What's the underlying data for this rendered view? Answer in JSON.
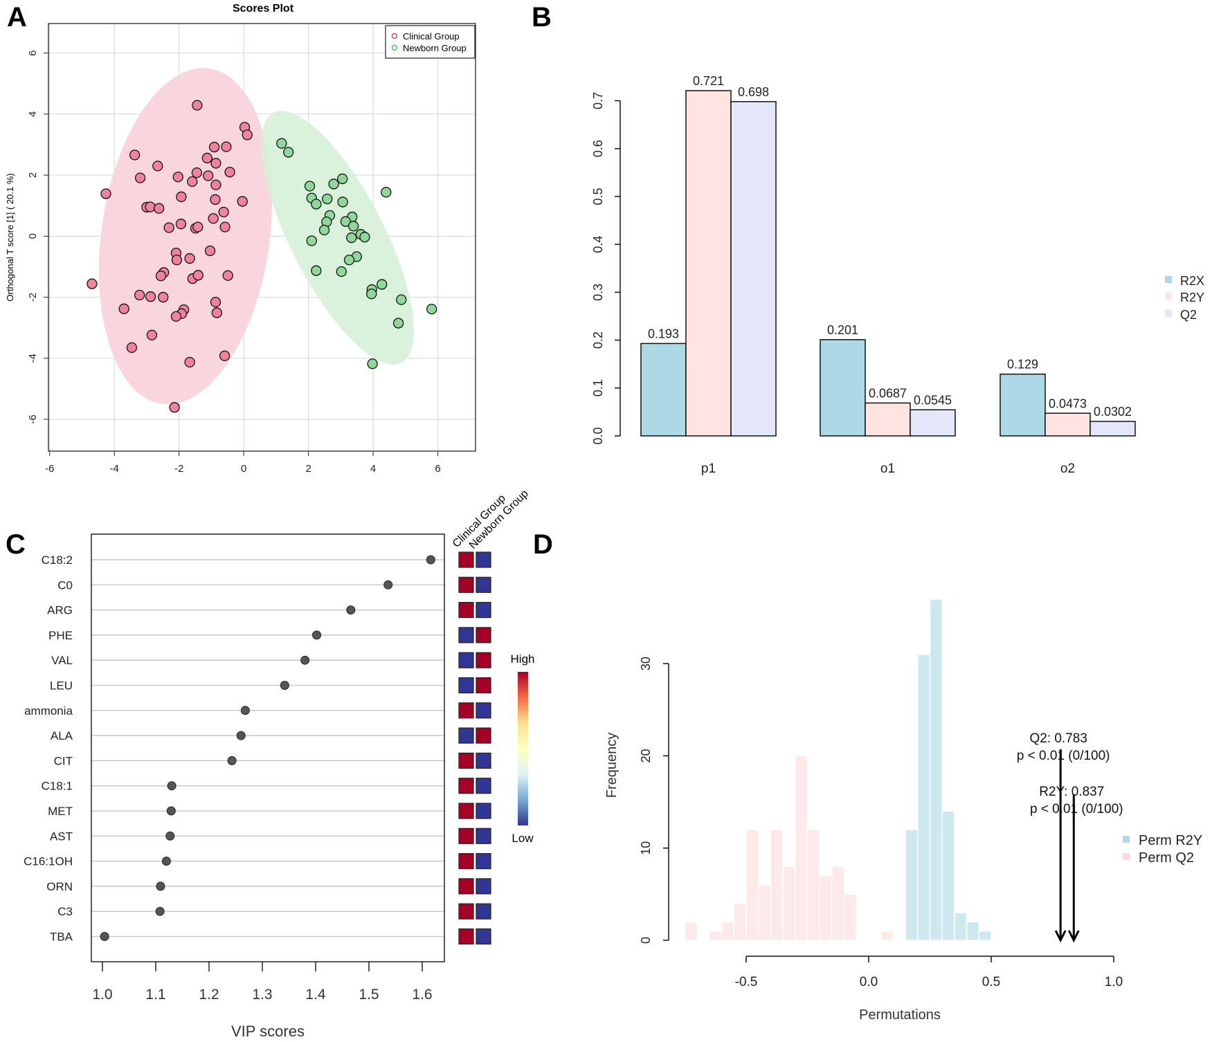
{
  "panels": {
    "a": "A",
    "b": "B",
    "c": "C",
    "d": "D"
  },
  "chart_data": [
    {
      "id": "A",
      "type": "scatter",
      "title": "Scores Plot",
      "xlabel": "",
      "ylabel": "Orthogonal T score [1] ( 20.1 %)",
      "xlim": [
        -6.3,
        7.1
      ],
      "ylim": [
        -7.0,
        6.8
      ],
      "xticks": [
        -6,
        -4,
        -2,
        0,
        2,
        4,
        6
      ],
      "yticks": [
        -6,
        -4,
        -2,
        0,
        2,
        4,
        6
      ],
      "grid": true,
      "legend_position": "top-right",
      "series": [
        {
          "name": "Clinical Group",
          "color": "#f0829e",
          "legend_color": "#d6204f",
          "ellipse_color": "#f8d0da",
          "ellipse": {
            "center": [
              -1.8,
              0.0
            ],
            "semi_major": 5.55,
            "semi_minor": 2.6,
            "tilt_deg": 8
          },
          "points": [
            [
              -1.44,
              4.29
            ],
            [
              0.03,
              3.57
            ],
            [
              0.11,
              3.32
            ],
            [
              -3.37,
              2.66
            ],
            [
              -0.91,
              2.92
            ],
            [
              -0.54,
              2.93
            ],
            [
              -1.13,
              2.56
            ],
            [
              -0.86,
              2.39
            ],
            [
              -2.66,
              2.3
            ],
            [
              -3.2,
              1.91
            ],
            [
              -2.03,
              1.94
            ],
            [
              -1.45,
              2.08
            ],
            [
              -0.43,
              2.1
            ],
            [
              -1.1,
              1.98
            ],
            [
              -1.59,
              1.79
            ],
            [
              -0.86,
              1.68
            ],
            [
              -4.26,
              1.39
            ],
            [
              -1.93,
              1.29
            ],
            [
              -0.88,
              1.2
            ],
            [
              -0.04,
              1.14
            ],
            [
              -3.0,
              0.95
            ],
            [
              -2.89,
              0.96
            ],
            [
              -2.62,
              0.91
            ],
            [
              -0.62,
              0.79
            ],
            [
              -0.94,
              0.58
            ],
            [
              -2.31,
              0.28
            ],
            [
              -1.94,
              0.4
            ],
            [
              -1.49,
              0.26
            ],
            [
              -1.42,
              0.3
            ],
            [
              -0.58,
              0.3
            ],
            [
              -2.09,
              -0.55
            ],
            [
              -2.07,
              -0.78
            ],
            [
              -1.67,
              -0.73
            ],
            [
              -1.04,
              -0.48
            ],
            [
              -2.47,
              -1.19
            ],
            [
              -2.56,
              -1.3
            ],
            [
              -1.58,
              -1.39
            ],
            [
              -1.41,
              -1.28
            ],
            [
              -0.49,
              -1.29
            ],
            [
              -4.69,
              -1.56
            ],
            [
              -3.22,
              -1.93
            ],
            [
              -2.88,
              -1.98
            ],
            [
              -2.49,
              -2.0
            ],
            [
              -0.87,
              -2.16
            ],
            [
              -0.83,
              -2.51
            ],
            [
              -3.7,
              -2.38
            ],
            [
              -1.85,
              -2.41
            ],
            [
              -1.92,
              -2.54
            ],
            [
              -2.09,
              -2.63
            ],
            [
              -2.84,
              -3.24
            ],
            [
              -3.46,
              -3.65
            ],
            [
              -0.59,
              -3.92
            ],
            [
              -1.67,
              -4.13
            ],
            [
              -2.14,
              -5.61
            ]
          ]
        },
        {
          "name": "Newborn Group",
          "color": "#8fd89a",
          "legend_color": "#2fb54a",
          "ellipse_color": "#d6f0d8",
          "ellipse": {
            "center": [
              2.9,
              -0.05
            ],
            "semi_major": 4.6,
            "semi_minor": 1.45,
            "tilt_deg": -27
          },
          "points": [
            [
              1.17,
              3.04
            ],
            [
              1.38,
              2.75
            ],
            [
              2.04,
              1.64
            ],
            [
              3.05,
              1.88
            ],
            [
              2.78,
              1.71
            ],
            [
              4.4,
              1.44
            ],
            [
              2.1,
              1.25
            ],
            [
              2.24,
              1.05
            ],
            [
              2.58,
              1.22
            ],
            [
              3.06,
              1.12
            ],
            [
              2.66,
              0.68
            ],
            [
              2.56,
              0.47
            ],
            [
              3.35,
              0.63
            ],
            [
              3.15,
              0.48
            ],
            [
              3.39,
              0.33
            ],
            [
              2.49,
              0.2
            ],
            [
              3.62,
              0.06
            ],
            [
              3.74,
              -0.03
            ],
            [
              3.33,
              -0.05
            ],
            [
              2.1,
              -0.15
            ],
            [
              3.49,
              -0.67
            ],
            [
              3.26,
              -0.78
            ],
            [
              2.24,
              -1.13
            ],
            [
              3.02,
              -1.16
            ],
            [
              4.27,
              -1.58
            ],
            [
              3.96,
              -1.75
            ],
            [
              3.95,
              -1.89
            ],
            [
              4.87,
              -2.08
            ],
            [
              5.81,
              -2.39
            ],
            [
              4.78,
              -2.85
            ],
            [
              3.98,
              -4.18
            ]
          ]
        }
      ]
    },
    {
      "id": "B",
      "type": "bar",
      "categories": [
        "p1",
        "o1",
        "o2"
      ],
      "ylim": [
        0,
        0.7
      ],
      "yticks": [
        "0.0",
        "0.1",
        "0.2",
        "0.3",
        "0.4",
        "0.5",
        "0.6",
        "0.7"
      ],
      "legend_position": "right",
      "series": [
        {
          "name": "R2X",
          "color": "#add8e6",
          "values": [
            0.193,
            0.201,
            0.129
          ],
          "labels": [
            "0.193",
            "0.201",
            "0.129"
          ]
        },
        {
          "name": "R2Y",
          "color": "#ffe4e1",
          "values": [
            0.721,
            0.0687,
            0.0473
          ],
          "labels": [
            "0.721",
            "0.0687",
            "0.0473"
          ]
        },
        {
          "name": "Q2",
          "color": "#e6e6fa",
          "values": [
            0.698,
            0.0545,
            0.0302
          ],
          "labels": [
            "0.698",
            "0.0545",
            "0.0302"
          ]
        }
      ]
    },
    {
      "id": "C",
      "type": "scatter",
      "xlabel": "VIP scores",
      "xticks": [
        "1.0",
        "1.1",
        "1.2",
        "1.3",
        "1.4",
        "1.5",
        "1.6"
      ],
      "xlim": [
        0.98,
        1.64
      ],
      "categories": [
        "C18:2",
        "C0",
        "ARG",
        "PHE",
        "VAL",
        "LEU",
        "ammonia",
        "ALA",
        "CIT",
        "C18:1",
        "MET",
        "AST",
        "C16:1OH",
        "ORN",
        "C3",
        "TBA"
      ],
      "values": [
        1.616,
        1.536,
        1.466,
        1.402,
        1.38,
        1.342,
        1.268,
        1.26,
        1.243,
        1.13,
        1.129,
        1.127,
        1.12,
        1.109,
        1.108,
        1.004
      ],
      "heatmap": {
        "columns": [
          "Clinical Group",
          "Newborn Group"
        ],
        "levels": [
          [
            "High",
            "Low"
          ],
          [
            "High",
            "Low"
          ],
          [
            "High",
            "Low"
          ],
          [
            "Low",
            "High"
          ],
          [
            "Low",
            "High"
          ],
          [
            "Low",
            "High"
          ],
          [
            "High",
            "Low"
          ],
          [
            "Low",
            "High"
          ],
          [
            "High",
            "Low"
          ],
          [
            "High",
            "Low"
          ],
          [
            "High",
            "Low"
          ],
          [
            "High",
            "Low"
          ],
          [
            "High",
            "Low"
          ],
          [
            "High",
            "Low"
          ],
          [
            "High",
            "Low"
          ],
          [
            "High",
            "Low"
          ]
        ],
        "colors": {
          "High": "#a50026",
          "Low": "#313695"
        },
        "scale_high_label": "High",
        "scale_low_label": "Low",
        "scale_colors": [
          "#a50026",
          "#f46d43",
          "#fee090",
          "#ffffbf",
          "#e0f3f8",
          "#74add1",
          "#313695"
        ]
      }
    },
    {
      "id": "D",
      "type": "bar",
      "xlabel": "Permutations",
      "ylabel": "Frequency",
      "xticks": [
        "-0.5",
        "0.0",
        "0.5",
        "1.0"
      ],
      "yticks": [
        "0",
        "10",
        "20",
        "30"
      ],
      "bin_width": 0.05,
      "legend_position": "right",
      "series": [
        {
          "name": "Perm R2Y",
          "color": "#cde8ef",
          "legend_color": "#add8e6",
          "bins": [
            [
              0.15,
              12
            ],
            [
              0.2,
              31
            ],
            [
              0.25,
              37
            ],
            [
              0.3,
              14
            ],
            [
              0.35,
              3
            ],
            [
              0.4,
              2
            ],
            [
              0.45,
              1
            ]
          ]
        },
        {
          "name": "Perm Q2",
          "color": "#fde9e8",
          "legend_color": "#fbd9d6",
          "bins": [
            [
              -0.75,
              2
            ],
            [
              -0.65,
              1
            ],
            [
              -0.6,
              2
            ],
            [
              -0.55,
              4
            ],
            [
              -0.5,
              12
            ],
            [
              -0.45,
              6
            ],
            [
              -0.4,
              12
            ],
            [
              -0.35,
              8
            ],
            [
              -0.3,
              20
            ],
            [
              -0.25,
              12
            ],
            [
              -0.2,
              7
            ],
            [
              -0.15,
              8
            ],
            [
              -0.1,
              5
            ],
            [
              0.05,
              1
            ]
          ]
        }
      ],
      "annotations": [
        {
          "label": "Q2: 0.783",
          "sub": "p < 0.01 (0/100)",
          "x": 0.783
        },
        {
          "label": "R2Y: 0.837",
          "sub": "p < 0.01 (0/100)",
          "x": 0.837
        }
      ]
    }
  ]
}
